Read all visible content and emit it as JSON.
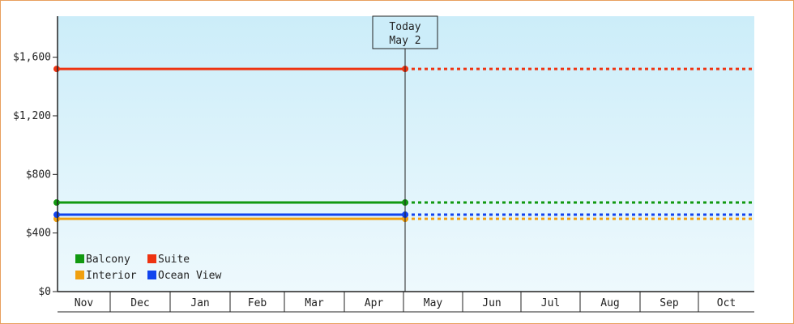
{
  "chart_data": {
    "type": "line",
    "title": "",
    "xlabel": "",
    "ylabel": "",
    "x_categories": [
      "Nov",
      "Dec",
      "Jan",
      "Feb",
      "Mar",
      "Apr",
      "May",
      "Jun",
      "Jul",
      "Aug",
      "Sep",
      "Oct"
    ],
    "y_ticks": [
      "$0",
      "$400",
      "$800",
      "$1,200",
      "$1,600"
    ],
    "y_tick_values": [
      0,
      400,
      800,
      1200,
      1600
    ],
    "ylim": [
      0,
      1880
    ],
    "grid": false,
    "legend_placement": "bottom-left",
    "today_marker": {
      "line1": "Today",
      "line2": "May 2"
    },
    "series": [
      {
        "name": "Balcony",
        "color": "#119911",
        "value": 608,
        "x_start": "Nov",
        "x_today": "May 2",
        "x_end": "Oct",
        "projection_style": "dotted"
      },
      {
        "name": "Suite",
        "color": "#ee3311",
        "value": 1520,
        "x_start": "Nov",
        "x_today": "May 2",
        "x_end": "Oct",
        "projection_style": "dotted"
      },
      {
        "name": "Interior",
        "color": "#f0a010",
        "value": 497,
        "x_start": "Nov",
        "x_today": "May 2",
        "x_end": "Oct",
        "projection_style": "dotted"
      },
      {
        "name": "Ocean View",
        "color": "#1144ee",
        "value": 525,
        "x_start": "Nov",
        "x_today": "May 2",
        "x_end": "Oct",
        "projection_style": "dotted"
      }
    ],
    "legend_order": [
      "Balcony",
      "Suite",
      "Interior",
      "Ocean View"
    ]
  },
  "colors": {
    "plot_gradient_top": "#ccedf9",
    "plot_gradient_bottom": "#eef9fd",
    "axis": "#222222",
    "frame_border": "#e8a05e"
  }
}
